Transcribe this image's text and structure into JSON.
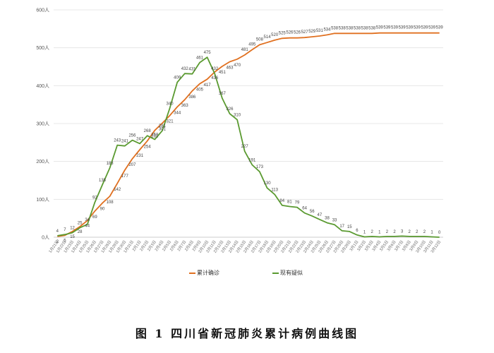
{
  "caption": "图 1   四川省新冠肺炎累计病例曲线图",
  "legend": [
    {
      "label": "累计确诊",
      "color": "#E07020"
    },
    {
      "label": "现有疑似",
      "color": "#5A9A30"
    }
  ],
  "chart_data": {
    "type": "line",
    "title": "四川省新冠肺炎累计病例曲线图",
    "xlabel": "",
    "ylabel": "",
    "ylim": [
      0,
      600
    ],
    "yticks": [
      "0人",
      "100人",
      "200人",
      "300人",
      "400人",
      "500人",
      "600人"
    ],
    "grid": true,
    "legend_position": "bottom",
    "categories": [
      "1月21日",
      "1月22日",
      "1月23日",
      "1月24日",
      "1月25日",
      "1月26日",
      "1月27日",
      "1月28日",
      "1月29日",
      "1月30日",
      "1月31日",
      "2月1日",
      "2月2日",
      "2月3日",
      "2月4日",
      "2月5日",
      "2月6日",
      "2月7日",
      "2月8日",
      "2月9日",
      "2月10日",
      "2月11日",
      "2月12日",
      "2月13日",
      "2月14日",
      "2月15日",
      "2月16日",
      "2月17日",
      "2月18日",
      "2月19日",
      "2月20日",
      "2月21日",
      "2月22日",
      "2月23日",
      "2月24日",
      "2月25日",
      "2月26日",
      "2月27日",
      "2月28日",
      "2月29日",
      "3月1日",
      "3月2日",
      "3月3日",
      "3月4日",
      "3月5日",
      "3月6日",
      "3月7日",
      "3月8日",
      "3月9日",
      "3月10日",
      "3月11日",
      "3月12日"
    ],
    "series": [
      {
        "name": "累计确诊",
        "color": "#E07020",
        "values": [
          2,
          5,
          15,
          28,
          44,
          69,
          90,
          108,
          142,
          177,
          207,
          231,
          254,
          282,
          301,
          321,
          344,
          363,
          386,
          405,
          417,
          436,
          451,
          463,
          470,
          481,
          495,
          508,
          514,
          520,
          525,
          526,
          526,
          527,
          529,
          531,
          534,
          538,
          538,
          538,
          538,
          538,
          538,
          539,
          539,
          539,
          539,
          539,
          539,
          539,
          539,
          539
        ]
      },
      {
        "name": "现有疑似",
        "color": "#5A9A30",
        "values": [
          4,
          7,
          12,
          25,
          34,
          92,
          138,
          183,
          243,
          241,
          256,
          247,
          268,
          258,
          281,
          340,
          409,
          432,
          431,
          461,
          475,
          432,
          367,
          326,
          310,
          227,
          191,
          173,
          130,
          113,
          84,
          81,
          79,
          64,
          56,
          47,
          38,
          33,
          17,
          15,
          6,
          1,
          2,
          1,
          2,
          2,
          3,
          2,
          2,
          2,
          1,
          0
        ]
      }
    ]
  }
}
